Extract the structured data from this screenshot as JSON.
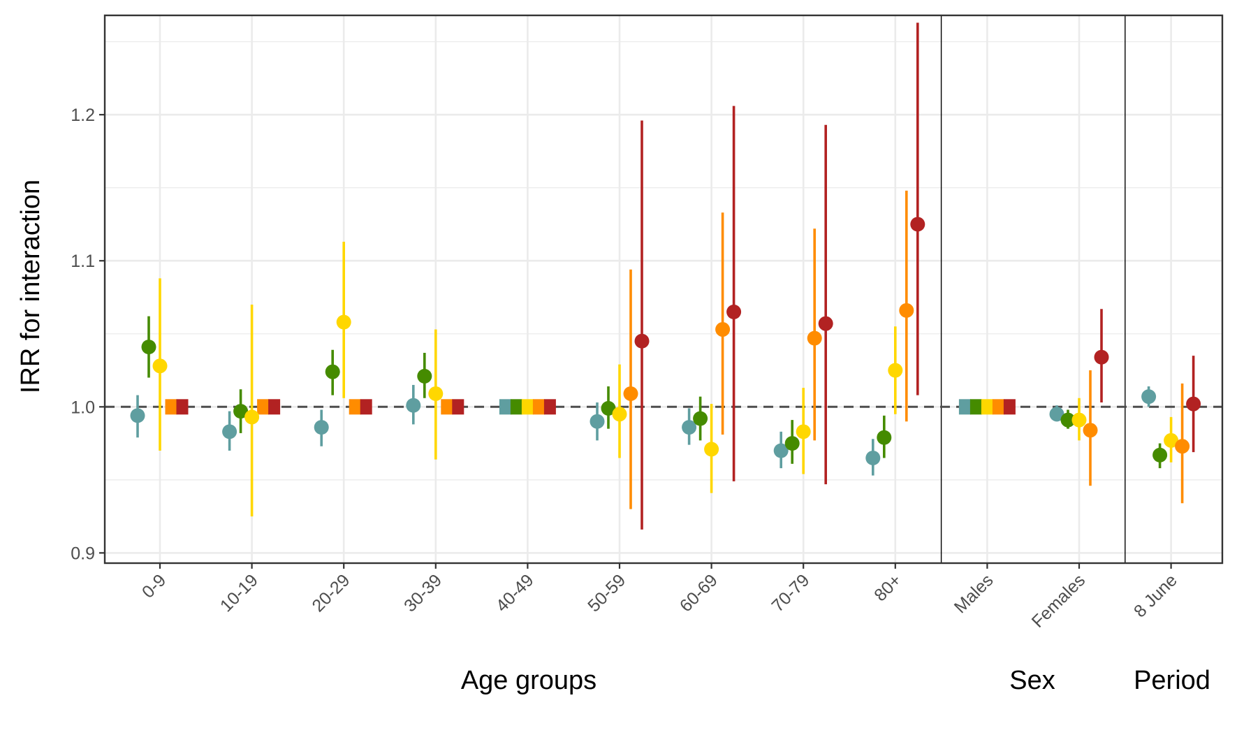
{
  "chart_data": {
    "type": "scatter",
    "subtype": "point-range",
    "title": "",
    "ylabel": "IRR for interaction",
    "ylim": [
      0.893,
      1.268
    ],
    "yticks": [
      0.9,
      1.0,
      1.1,
      1.2
    ],
    "ytick_labels": [
      "0.9",
      "1.0",
      "1.1",
      "1.2"
    ],
    "reference_line": 1.0,
    "grid": true,
    "legend": "none",
    "categories": [
      "0-9",
      "10-19",
      "20-29",
      "30-39",
      "40-49",
      "50-59",
      "60-69",
      "70-79",
      "80+",
      "Males",
      "Females",
      "8 June"
    ],
    "groups": [
      {
        "label": "Age groups",
        "categories": [
          "0-9",
          "10-19",
          "20-29",
          "30-39",
          "40-49",
          "50-59",
          "60-69",
          "70-79",
          "80+"
        ]
      },
      {
        "label": "Sex",
        "categories": [
          "Males",
          "Females"
        ]
      },
      {
        "label": "Period",
        "categories": [
          "8 June"
        ]
      }
    ],
    "series_colors": [
      "#5f9ea0",
      "#458b00",
      "#ffd700",
      "#ff8c00",
      "#b22222"
    ],
    "reference_categories": [
      {
        "category": "0-9",
        "series": [
          3,
          4
        ]
      },
      {
        "category": "10-19",
        "series": [
          3,
          4
        ]
      },
      {
        "category": "20-29",
        "series": [
          3,
          4
        ]
      },
      {
        "category": "30-39",
        "series": [
          3,
          4
        ]
      },
      {
        "category": "40-49",
        "series": [
          0,
          1,
          2,
          3,
          4
        ]
      },
      {
        "category": "Males",
        "series": [
          0,
          1,
          2,
          3,
          4
        ]
      }
    ],
    "points": [
      {
        "category": "0-9",
        "series": 0,
        "value": 0.994,
        "low": 0.979,
        "high": 1.008
      },
      {
        "category": "0-9",
        "series": 1,
        "value": 1.041,
        "low": 1.02,
        "high": 1.062
      },
      {
        "category": "0-9",
        "series": 2,
        "value": 1.028,
        "low": 0.97,
        "high": 1.088
      },
      {
        "category": "10-19",
        "series": 0,
        "value": 0.983,
        "low": 0.97,
        "high": 0.997
      },
      {
        "category": "10-19",
        "series": 1,
        "value": 0.997,
        "low": 0.982,
        "high": 1.012
      },
      {
        "category": "10-19",
        "series": 2,
        "value": 0.993,
        "low": 0.925,
        "high": 1.07
      },
      {
        "category": "20-29",
        "series": 0,
        "value": 0.986,
        "low": 0.973,
        "high": 0.998
      },
      {
        "category": "20-29",
        "series": 1,
        "value": 1.024,
        "low": 1.008,
        "high": 1.039
      },
      {
        "category": "20-29",
        "series": 2,
        "value": 1.058,
        "low": 1.006,
        "high": 1.113
      },
      {
        "category": "30-39",
        "series": 0,
        "value": 1.001,
        "low": 0.988,
        "high": 1.015
      },
      {
        "category": "30-39",
        "series": 1,
        "value": 1.021,
        "low": 1.006,
        "high": 1.037
      },
      {
        "category": "30-39",
        "series": 2,
        "value": 1.009,
        "low": 0.964,
        "high": 1.053
      },
      {
        "category": "50-59",
        "series": 0,
        "value": 0.99,
        "low": 0.977,
        "high": 1.003
      },
      {
        "category": "50-59",
        "series": 1,
        "value": 0.999,
        "low": 0.985,
        "high": 1.014
      },
      {
        "category": "50-59",
        "series": 2,
        "value": 0.995,
        "low": 0.965,
        "high": 1.029
      },
      {
        "category": "50-59",
        "series": 3,
        "value": 1.009,
        "low": 0.93,
        "high": 1.094
      },
      {
        "category": "50-59",
        "series": 4,
        "value": 1.045,
        "low": 0.916,
        "high": 1.196
      },
      {
        "category": "60-69",
        "series": 0,
        "value": 0.986,
        "low": 0.974,
        "high": 0.999
      },
      {
        "category": "60-69",
        "series": 1,
        "value": 0.992,
        "low": 0.977,
        "high": 1.007
      },
      {
        "category": "60-69",
        "series": 2,
        "value": 0.971,
        "low": 0.941,
        "high": 1.002
      },
      {
        "category": "60-69",
        "series": 3,
        "value": 1.053,
        "low": 0.981,
        "high": 1.133
      },
      {
        "category": "60-69",
        "series": 4,
        "value": 1.065,
        "low": 0.949,
        "high": 1.206
      },
      {
        "category": "70-79",
        "series": 0,
        "value": 0.97,
        "low": 0.958,
        "high": 0.983
      },
      {
        "category": "70-79",
        "series": 1,
        "value": 0.975,
        "low": 0.961,
        "high": 0.991
      },
      {
        "category": "70-79",
        "series": 2,
        "value": 0.983,
        "low": 0.954,
        "high": 1.013
      },
      {
        "category": "70-79",
        "series": 3,
        "value": 1.047,
        "low": 0.977,
        "high": 1.122
      },
      {
        "category": "70-79",
        "series": 4,
        "value": 1.057,
        "low": 0.947,
        "high": 1.193
      },
      {
        "category": "80+",
        "series": 0,
        "value": 0.965,
        "low": 0.953,
        "high": 0.978
      },
      {
        "category": "80+",
        "series": 1,
        "value": 0.979,
        "low": 0.965,
        "high": 0.994
      },
      {
        "category": "80+",
        "series": 2,
        "value": 1.025,
        "low": 0.995,
        "high": 1.055
      },
      {
        "category": "80+",
        "series": 3,
        "value": 1.066,
        "low": 0.99,
        "high": 1.148
      },
      {
        "category": "80+",
        "series": 4,
        "value": 1.125,
        "low": 1.008,
        "high": 1.263
      },
      {
        "category": "Females",
        "series": 0,
        "value": 0.995,
        "low": 0.99,
        "high": 1.001
      },
      {
        "category": "Females",
        "series": 1,
        "value": 0.991,
        "low": 0.985,
        "high": 0.998
      },
      {
        "category": "Females",
        "series": 2,
        "value": 0.991,
        "low": 0.977,
        "high": 1.006
      },
      {
        "category": "Females",
        "series": 3,
        "value": 0.984,
        "low": 0.946,
        "high": 1.025
      },
      {
        "category": "Females",
        "series": 4,
        "value": 1.034,
        "low": 1.003,
        "high": 1.067
      },
      {
        "category": "8 June",
        "series": 0,
        "value": 1.007,
        "low": 1.0,
        "high": 1.014
      },
      {
        "category": "8 June",
        "series": 1,
        "value": 0.967,
        "low": 0.958,
        "high": 0.975
      },
      {
        "category": "8 June",
        "series": 2,
        "value": 0.977,
        "low": 0.962,
        "high": 0.993
      },
      {
        "category": "8 June",
        "series": 3,
        "value": 0.973,
        "low": 0.934,
        "high": 1.016
      },
      {
        "category": "8 June",
        "series": 4,
        "value": 1.002,
        "low": 0.969,
        "high": 1.035
      }
    ]
  }
}
